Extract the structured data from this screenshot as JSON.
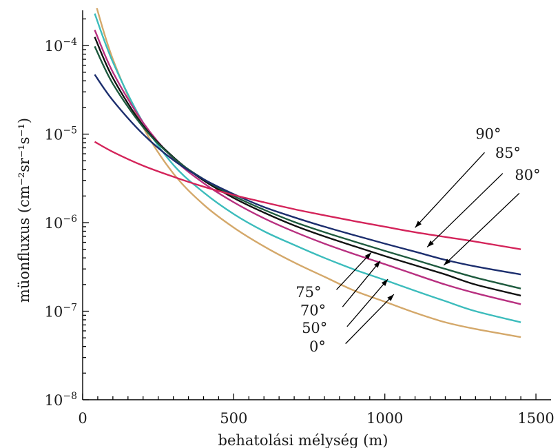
{
  "chart_data": {
    "type": "line",
    "title": "",
    "xlabel": "behatolási mélység (m)",
    "ylabel": "müonfluxus (cm⁻²sr⁻¹s⁻¹)",
    "xlim": [
      0,
      1550
    ],
    "ylim": [
      1e-08,
      0.00025
    ],
    "yscale": "log",
    "grid": false,
    "x_ticks": [
      0,
      500,
      1000,
      1500
    ],
    "y_ticks": [
      {
        "value": 1e-08,
        "base": "10",
        "exp": "−8"
      },
      {
        "value": 1e-07,
        "base": "10",
        "exp": "−7"
      },
      {
        "value": 1e-06,
        "base": "10",
        "exp": "−6"
      },
      {
        "value": 1e-05,
        "base": "10",
        "exp": "−5"
      },
      {
        "value": 0.0001,
        "base": "10",
        "exp": "−4"
      }
    ],
    "series": [
      {
        "name": "0°",
        "color": "#d4a86a",
        "x": [
          40,
          100,
          200,
          300,
          400,
          500,
          600,
          700,
          800,
          900,
          1000,
          1100,
          1200,
          1300,
          1450
        ],
        "y": [
          0.00032,
          7e-05,
          1.2e-05,
          3.6e-06,
          1.6e-06,
          8.8e-07,
          5.4e-07,
          3.55e-07,
          2.45e-07,
          1.7e-07,
          1.28e-07,
          9.6e-08,
          7.5e-08,
          6.3e-08,
          5.1e-08
        ]
      },
      {
        "name": "50°",
        "color": "#3cbcbc",
        "x": [
          40,
          100,
          200,
          300,
          400,
          500,
          600,
          700,
          800,
          900,
          1000,
          1100,
          1200,
          1300,
          1450
        ],
        "y": [
          0.00023,
          6.5e-05,
          1.35e-05,
          4.5e-06,
          2.2e-06,
          1.25e-06,
          8e-07,
          5.6e-07,
          4e-07,
          2.95e-07,
          2.25e-07,
          1.7e-07,
          1.3e-07,
          1e-07,
          7.5e-08
        ]
      },
      {
        "name": "70°",
        "color": "#b83080",
        "x": [
          40,
          100,
          200,
          300,
          400,
          500,
          600,
          700,
          800,
          900,
          1000,
          1100,
          1200,
          1300,
          1450
        ],
        "y": [
          0.00015,
          5e-05,
          1.35e-05,
          5.3e-06,
          2.8e-06,
          1.7e-06,
          1.12e-06,
          7.9e-07,
          5.8e-07,
          4.4e-07,
          3.4e-07,
          2.6e-07,
          2e-07,
          1.6e-07,
          1.2e-07
        ]
      },
      {
        "name": "75°",
        "color": "#111111",
        "x": [
          40,
          100,
          200,
          300,
          400,
          500,
          600,
          700,
          800,
          900,
          1000,
          1100,
          1200,
          1300,
          1450
        ],
        "y": [
          0.000125,
          4.3e-05,
          1.25e-05,
          5.5e-06,
          3e-06,
          1.9e-06,
          1.3e-06,
          9.3e-07,
          7e-07,
          5.4e-07,
          4.2e-07,
          3.3e-07,
          2.6e-07,
          2e-07,
          1.5e-07
        ]
      },
      {
        "name": "80°",
        "color": "#1e5a3e",
        "x": [
          40,
          100,
          200,
          300,
          400,
          500,
          600,
          700,
          800,
          900,
          1000,
          1100,
          1200,
          1300,
          1450
        ],
        "y": [
          9.8e-05,
          3.7e-05,
          1.2e-05,
          5.4e-06,
          3.1e-06,
          2e-06,
          1.4e-06,
          1.02e-06,
          7.8e-07,
          6.1e-07,
          4.8e-07,
          3.8e-07,
          3e-07,
          2.4e-07,
          1.8e-07
        ]
      },
      {
        "name": "85°",
        "color": "#1c2e6e",
        "x": [
          40,
          100,
          200,
          300,
          400,
          500,
          600,
          700,
          800,
          900,
          1000,
          1100,
          1200,
          1300,
          1450
        ],
        "y": [
          4.7e-05,
          2.4e-05,
          1e-05,
          5.1e-06,
          3.1e-06,
          2.1e-06,
          1.5e-06,
          1.15e-06,
          9e-07,
          7.2e-07,
          5.8e-07,
          4.7e-07,
          3.8e-07,
          3.2e-07,
          2.6e-07
        ]
      },
      {
        "name": "90°",
        "color": "#d4245a",
        "x": [
          40,
          100,
          200,
          300,
          400,
          500,
          600,
          700,
          800,
          900,
          1000,
          1100,
          1200,
          1300,
          1450
        ],
        "y": [
          8.2e-06,
          6.3e-06,
          4.4e-06,
          3.3e-06,
          2.55e-06,
          2.05e-06,
          1.7e-06,
          1.42e-06,
          1.21e-06,
          1.04e-06,
          9e-07,
          7.8e-07,
          6.9e-07,
          6.1e-07,
          5e-07
        ]
      }
    ],
    "annotations": [
      {
        "label": "90°",
        "tip": [
          1100,
          8.8e-07
        ],
        "tail": [
          1330,
          6.2e-06
        ],
        "label_at": [
          1300,
          8.8e-06
        ]
      },
      {
        "label": "85°",
        "tip": [
          1140,
          5.3e-07
        ],
        "tail": [
          1390,
          3.6e-06
        ],
        "label_at": [
          1365,
          5.4e-06
        ]
      },
      {
        "label": "80°",
        "tip": [
          1195,
          3.3e-07
        ],
        "tail": [
          1445,
          2.15e-06
        ],
        "label_at": [
          1430,
          3.05e-06
        ]
      },
      {
        "label": "75°",
        "tip": [
          955,
          4.6e-07
        ],
        "tail": [
          840,
          1.75e-07
        ],
        "label_at": [
          705,
          1.45e-07
        ]
      },
      {
        "label": "70°",
        "tip": [
          985,
          3.7e-07
        ],
        "tail": [
          860,
          1.12e-07
        ],
        "label_at": [
          720,
          9e-08
        ]
      },
      {
        "label": "50°",
        "tip": [
          1010,
          2.3e-07
        ],
        "tail": [
          875,
          6.7e-08
        ],
        "label_at": [
          725,
          5.7e-08
        ]
      },
      {
        "label": "0°",
        "tip": [
          1030,
          1.55e-07
        ],
        "tail": [
          870,
          4.3e-08
        ],
        "label_at": [
          750,
          3.5e-08
        ]
      }
    ]
  }
}
